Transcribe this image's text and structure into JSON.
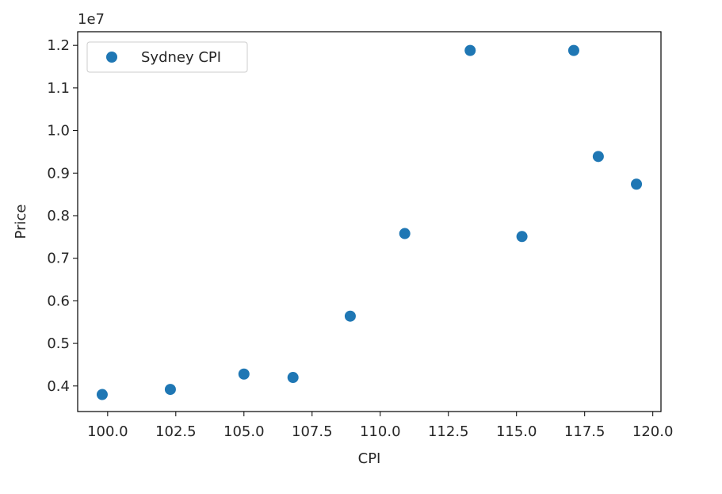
{
  "chart_data": {
    "type": "scatter",
    "title": "",
    "xlabel": "CPI",
    "ylabel": "Price",
    "offset_text": "1e7",
    "xlim": [
      98.9,
      120.3
    ],
    "ylim": [
      0.34,
      1.232
    ],
    "y_multiplier": 10000000,
    "xticks": [
      100.0,
      102.5,
      105.0,
      107.5,
      110.0,
      112.5,
      115.0,
      117.5,
      120.0
    ],
    "xtick_labels": [
      "100.0",
      "102.5",
      "105.0",
      "107.5",
      "110.0",
      "112.5",
      "115.0",
      "117.5",
      "120.0"
    ],
    "yticks": [
      0.4,
      0.5,
      0.6,
      0.7,
      0.8,
      0.9,
      1.0,
      1.1,
      1.2
    ],
    "ytick_labels": [
      "0.4",
      "0.5",
      "0.6",
      "0.7",
      "0.8",
      "0.9",
      "1.0",
      "1.1",
      "1.2"
    ],
    "grid": false,
    "legend_position": "upper-left",
    "series": [
      {
        "name": "Sydney CPI",
        "color": "#1f77b4",
        "x": [
          99.8,
          102.3,
          105.0,
          106.8,
          108.9,
          110.9,
          113.3,
          115.2,
          117.1,
          118.0,
          119.4
        ],
        "y": [
          3800000,
          3920000,
          4280000,
          4200000,
          5640000,
          7580000,
          11880000,
          7510000,
          11880000,
          9390000,
          8740000
        ]
      }
    ]
  }
}
